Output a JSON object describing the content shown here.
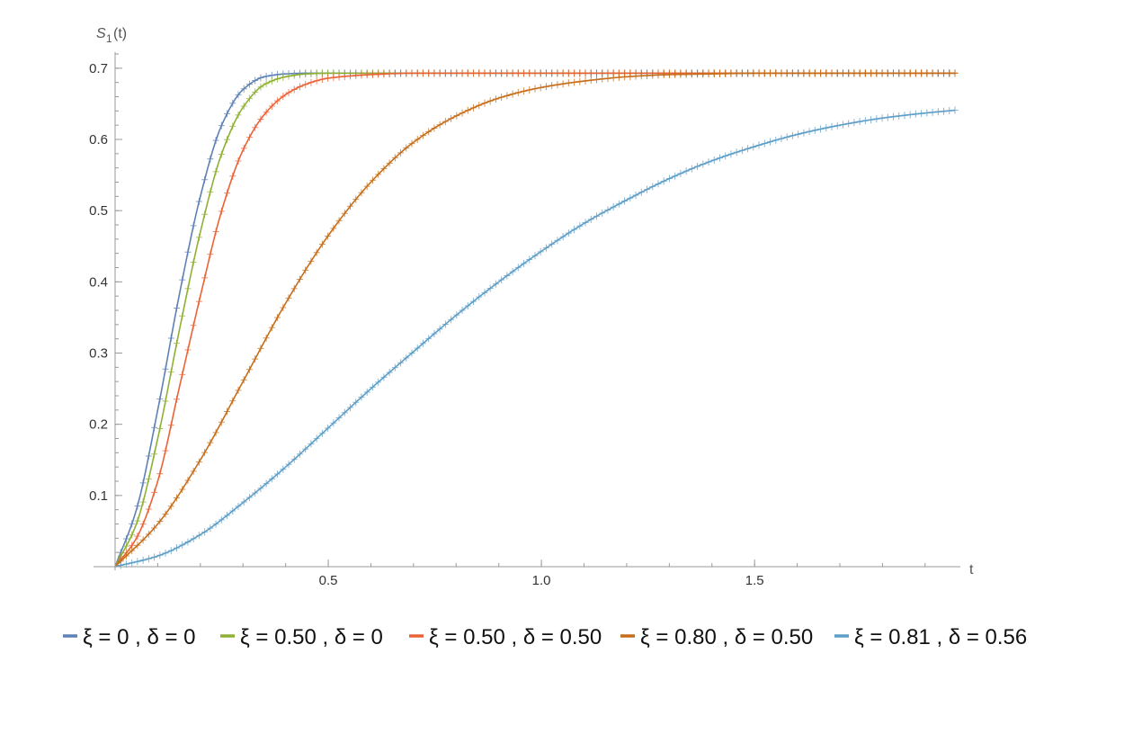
{
  "chart_data": {
    "type": "line",
    "title": "",
    "xlabel": "t",
    "ylabel": "S1(t)",
    "xlim": [
      0,
      1.97
    ],
    "ylim": [
      0,
      0.72
    ],
    "x_ticks": [
      0.5,
      1.0,
      1.5
    ],
    "x_tick_labels": [
      "0.5",
      "1.0",
      "1.5"
    ],
    "y_ticks": [
      0.1,
      0.2,
      0.3,
      0.4,
      0.5,
      0.6,
      0.7
    ],
    "y_tick_labels": [
      "0.1",
      "0.2",
      "0.3",
      "0.4",
      "0.5",
      "0.6",
      "0.7"
    ],
    "grid": false,
    "legend_position": "bottom",
    "series": [
      {
        "name": "ξ = 0 , δ = 0",
        "color": "#5E81B5",
        "x": [
          0,
          0.05,
          0.1,
          0.15,
          0.2,
          0.25,
          0.3,
          0.35,
          0.4,
          0.45,
          0.5,
          0.6,
          0.8,
          1.0,
          1.5,
          1.97
        ],
        "y": [
          0.0,
          0.08,
          0.22,
          0.38,
          0.52,
          0.62,
          0.67,
          0.688,
          0.692,
          0.693,
          0.693,
          0.693,
          0.693,
          0.693,
          0.693,
          0.693
        ]
      },
      {
        "name": "ξ = 0.50 , δ = 0",
        "color": "#8FB032",
        "x": [
          0,
          0.05,
          0.1,
          0.15,
          0.2,
          0.25,
          0.3,
          0.35,
          0.4,
          0.45,
          0.5,
          0.6,
          0.8,
          1.0,
          1.5,
          1.97
        ],
        "y": [
          0.0,
          0.06,
          0.18,
          0.33,
          0.47,
          0.58,
          0.645,
          0.677,
          0.688,
          0.692,
          0.693,
          0.693,
          0.693,
          0.693,
          0.693,
          0.693
        ]
      },
      {
        "name": "ξ = 0.50 , δ = 0.50",
        "color": "#EB6235",
        "x": [
          0,
          0.05,
          0.1,
          0.15,
          0.2,
          0.25,
          0.3,
          0.35,
          0.4,
          0.45,
          0.5,
          0.6,
          0.7,
          0.8,
          1.0,
          1.5,
          1.97
        ],
        "y": [
          0.0,
          0.04,
          0.12,
          0.25,
          0.38,
          0.5,
          0.585,
          0.635,
          0.663,
          0.678,
          0.686,
          0.691,
          0.693,
          0.693,
          0.693,
          0.693,
          0.693
        ]
      },
      {
        "name": "ξ = 0.80 , δ = 0.50",
        "color": "#C56E1A",
        "x": [
          0,
          0.1,
          0.2,
          0.3,
          0.4,
          0.5,
          0.6,
          0.7,
          0.8,
          0.9,
          1.0,
          1.1,
          1.2,
          1.3,
          1.4,
          1.5,
          1.7,
          1.97
        ],
        "y": [
          0.0,
          0.06,
          0.15,
          0.26,
          0.37,
          0.465,
          0.54,
          0.596,
          0.633,
          0.658,
          0.673,
          0.682,
          0.688,
          0.691,
          0.692,
          0.693,
          0.693,
          0.693
        ]
      },
      {
        "name": "ξ = 0.81 , δ = 0.56",
        "color": "#5D9EC7",
        "x": [
          0,
          0.1,
          0.2,
          0.3,
          0.4,
          0.5,
          0.6,
          0.7,
          0.8,
          0.9,
          1.0,
          1.1,
          1.2,
          1.3,
          1.4,
          1.5,
          1.6,
          1.7,
          1.8,
          1.9,
          1.97
        ],
        "y": [
          0.0,
          0.015,
          0.045,
          0.09,
          0.14,
          0.195,
          0.25,
          0.302,
          0.353,
          0.4,
          0.443,
          0.482,
          0.515,
          0.545,
          0.57,
          0.59,
          0.607,
          0.62,
          0.63,
          0.637,
          0.641
        ]
      }
    ]
  }
}
